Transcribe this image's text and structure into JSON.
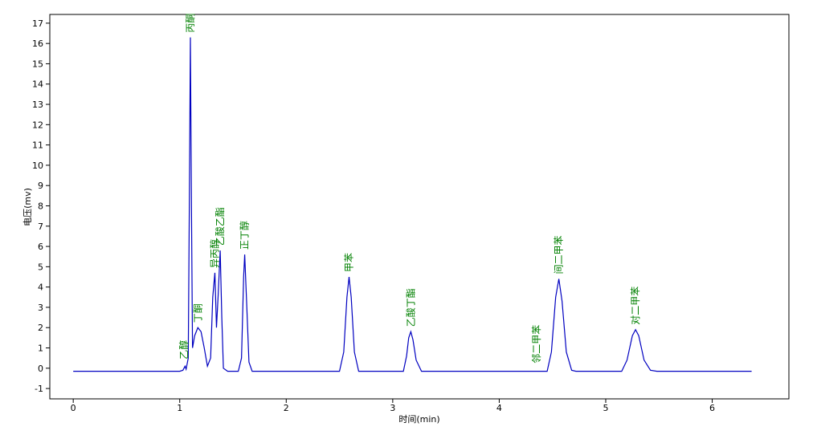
{
  "chart_data": {
    "type": "line",
    "x_label": "时间(min)",
    "y_label": "电压(mv)",
    "xlim": [
      -0.22,
      6.72
    ],
    "ylim": [
      -1.51,
      17.43
    ],
    "xticks": [
      0,
      1,
      2,
      3,
      4,
      5,
      6
    ],
    "yticks": [
      -1,
      0,
      1,
      2,
      3,
      4,
      5,
      6,
      7,
      8,
      9,
      10,
      11,
      12,
      13,
      14,
      15,
      16,
      17
    ],
    "grid": false,
    "series": [
      {
        "color": "#0000c0",
        "x": [
          0,
          1.0,
          1.03,
          1.05,
          1.06,
          1.08,
          1.09,
          1.1,
          1.11,
          1.12,
          1.14,
          1.17,
          1.2,
          1.23,
          1.26,
          1.29,
          1.31,
          1.33,
          1.345,
          1.36,
          1.38,
          1.395,
          1.41,
          1.45,
          1.55,
          1.58,
          1.6,
          1.61,
          1.63,
          1.65,
          1.68,
          2.5,
          2.54,
          2.57,
          2.59,
          2.61,
          2.64,
          2.68,
          3.1,
          3.13,
          3.15,
          3.17,
          3.19,
          3.22,
          3.27,
          4.45,
          4.49,
          4.53,
          4.56,
          4.59,
          4.63,
          4.68,
          4.72,
          5.15,
          5.2,
          5.25,
          5.28,
          5.31,
          5.36,
          5.42,
          5.48,
          6.37
        ],
        "values": [
          -0.15,
          -0.15,
          -0.1,
          0.1,
          -0.05,
          0.5,
          8,
          16.3,
          8,
          1.0,
          1.6,
          2.0,
          1.8,
          1.0,
          0.1,
          0.5,
          3.5,
          4.7,
          2.0,
          3.5,
          5.8,
          2.5,
          0.0,
          -0.15,
          -0.15,
          0.5,
          4.5,
          5.6,
          3.0,
          0.3,
          -0.15,
          -0.15,
          0.8,
          3.5,
          4.5,
          3.5,
          0.8,
          -0.15,
          -0.15,
          0.6,
          1.5,
          1.8,
          1.4,
          0.4,
          -0.15,
          -0.15,
          0.8,
          3.5,
          4.4,
          3.3,
          0.8,
          -0.1,
          -0.15,
          -0.15,
          0.4,
          1.6,
          1.9,
          1.6,
          0.4,
          -0.1,
          -0.15,
          -0.15
        ]
      }
    ],
    "annotations": [
      {
        "text": "乙醇",
        "x": 1.04,
        "y": 0.2
      },
      {
        "text": "丙酮",
        "x": 1.1,
        "y": 16.3
      },
      {
        "text": "丁酮",
        "x": 1.17,
        "y": 2.0
      },
      {
        "text": "异丙醇",
        "x": 1.33,
        "y": 4.7
      },
      {
        "text": "乙酸乙酯",
        "x": 1.38,
        "y": 5.8
      },
      {
        "text": "正丁醇",
        "x": 1.61,
        "y": 5.6
      },
      {
        "text": "甲苯",
        "x": 2.59,
        "y": 4.5
      },
      {
        "text": "乙酸丁酯",
        "x": 3.17,
        "y": 1.8
      },
      {
        "text": "邻二甲苯",
        "x": 4.35,
        "y": 0.0
      },
      {
        "text": "间二甲苯",
        "x": 4.56,
        "y": 4.4
      },
      {
        "text": "对二甲苯",
        "x": 5.28,
        "y": 1.9
      }
    ]
  }
}
